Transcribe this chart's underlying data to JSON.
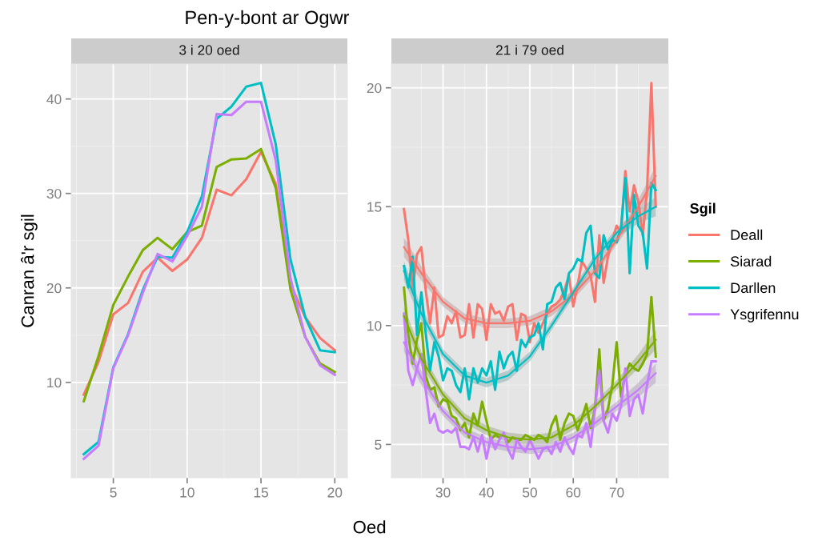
{
  "chart_data": [
    {
      "type": "line",
      "title": "Pen-y-bont ar Ogwr",
      "subtitle": "3 i 20 oed",
      "xlabel": "Oed",
      "ylabel": "Canran â'r sgil",
      "grid": true,
      "xlim": [
        2.15,
        20.85
      ],
      "xticks": [
        5,
        10,
        15,
        20
      ],
      "ylim": [
        -0.1,
        43.7
      ],
      "yticks": [
        10,
        20,
        30,
        40
      ],
      "x": [
        3,
        4,
        5,
        6,
        7,
        8,
        9,
        10,
        11,
        12,
        13,
        14,
        15,
        16,
        17,
        18,
        19,
        20
      ],
      "series": [
        {
          "color": "#f8766d",
          "values": [
            8.7,
            12.2,
            17.2,
            18.4,
            21.7,
            23.2,
            21.8,
            23.0,
            25.3,
            30.4,
            29.8,
            31.5,
            34.4,
            31.0,
            20.4,
            16.9,
            14.7,
            13.4
          ]
        },
        {
          "color": "#7cae00",
          "values": [
            8.0,
            12.8,
            18.2,
            21.2,
            24.0,
            25.3,
            24.1,
            25.9,
            26.6,
            32.8,
            33.6,
            33.7,
            34.7,
            30.6,
            19.8,
            14.8,
            12.0,
            11.1
          ]
        },
        {
          "color": "#00bfc4",
          "values": [
            2.4,
            3.7,
            11.6,
            15.1,
            19.8,
            23.3,
            23.2,
            25.9,
            29.7,
            37.9,
            39.2,
            41.3,
            41.7,
            35.2,
            23.0,
            16.9,
            13.4,
            13.2
          ]
        },
        {
          "color": "#c77cff",
          "values": [
            1.9,
            3.3,
            11.5,
            15.0,
            19.5,
            23.6,
            22.8,
            25.5,
            28.6,
            38.4,
            38.3,
            39.7,
            39.7,
            33.5,
            21.0,
            14.8,
            11.8,
            10.8
          ]
        }
      ]
    },
    {
      "type": "line",
      "subtitle": "21 i 79 oed",
      "legend_title": "Sgil",
      "legend": "right",
      "grid": true,
      "xlim": [
        18.1,
        81.9
      ],
      "xticks": [
        30,
        40,
        50,
        60,
        70
      ],
      "ylim": [
        3.6,
        21.0
      ],
      "yticks": [
        5,
        10,
        15,
        20
      ],
      "x": [
        21,
        22,
        23,
        24,
        25,
        26,
        27,
        28,
        29,
        30,
        31,
        32,
        33,
        34,
        35,
        36,
        37,
        38,
        39,
        40,
        41,
        42,
        43,
        44,
        45,
        46,
        47,
        48,
        49,
        50,
        51,
        52,
        53,
        54,
        55,
        56,
        57,
        58,
        59,
        60,
        61,
        62,
        63,
        64,
        65,
        66,
        67,
        68,
        69,
        70,
        71,
        72,
        73,
        74,
        75,
        76,
        77,
        78,
        79
      ],
      "series": [
        {
          "name": "Deall",
          "color": "#f8766d",
          "values": [
            14.9,
            13.6,
            11.5,
            13.0,
            13.3,
            11.5,
            10.1,
            11.6,
            9.5,
            9.6,
            10.4,
            10.1,
            10.6,
            9.5,
            9.6,
            10.9,
            9.5,
            10.9,
            10.7,
            9.4,
            10.9,
            10.5,
            10.6,
            10.2,
            10.8,
            10.9,
            9.4,
            10.5,
            10.4,
            9.3,
            10.1,
            9.7,
            10.1,
            10.5,
            10.8,
            10.9,
            11.1,
            11.5,
            12.1,
            10.8,
            11.7,
            12.7,
            12.4,
            12.1,
            11.0,
            13.8,
            11.8,
            12.9,
            13.6,
            14.2,
            13.9,
            16.5,
            14.8,
            15.9,
            15.2,
            13.8,
            15.7,
            20.2,
            15.0
          ]
        },
        {
          "name": "Siarad",
          "color": "#7cae00",
          "values": [
            11.6,
            9.6,
            8.4,
            9.4,
            10.1,
            7.9,
            7.3,
            7.4,
            6.6,
            6.9,
            6.8,
            6.2,
            6.1,
            5.6,
            5.9,
            5.3,
            6.3,
            5.8,
            6.8,
            6.0,
            5.2,
            5.4,
            5.3,
            5.4,
            5.1,
            5.3,
            5.2,
            5.2,
            5.4,
            5.3,
            5.2,
            5.4,
            5.3,
            5.1,
            5.8,
            6.2,
            5.2,
            5.9,
            6.3,
            6.2,
            5.6,
            6.1,
            6.7,
            5.7,
            6.5,
            9.0,
            6.0,
            6.5,
            7.5,
            9.3,
            7.0,
            8.0,
            8.4,
            8.2,
            8.1,
            8.4,
            8.8,
            11.2,
            8.7
          ]
        },
        {
          "name": "Darllen",
          "color": "#00bfc4",
          "values": [
            12.5,
            11.6,
            12.9,
            9.6,
            11.4,
            9.7,
            8.1,
            9.3,
            8.7,
            7.7,
            8.2,
            8.1,
            7.5,
            7.2,
            8.2,
            6.9,
            8.2,
            7.6,
            8.2,
            7.9,
            8.5,
            7.3,
            8.9,
            8.2,
            8.7,
            8.9,
            8.1,
            9.4,
            9.1,
            9.5,
            9.6,
            10.1,
            9.0,
            10.9,
            11.0,
            11.6,
            11.8,
            11.1,
            12.2,
            12.4,
            12.8,
            12.7,
            13.9,
            14.2,
            12.2,
            12.0,
            13.8,
            13.2,
            13.6,
            13.5,
            14.1,
            16.2,
            12.2,
            15.5,
            14.2,
            13.9,
            12.4,
            16.0,
            15.7
          ]
        },
        {
          "name": "Ysgrifennu",
          "color": "#c77cff",
          "values": [
            10.5,
            8.1,
            7.5,
            8.2,
            8.8,
            7.3,
            5.9,
            6.3,
            5.6,
            5.5,
            5.6,
            5.5,
            5.7,
            4.9,
            4.9,
            4.8,
            5.3,
            4.7,
            5.4,
            4.4,
            5.3,
            4.8,
            5.2,
            5.5,
            4.8,
            4.4,
            5.2,
            4.9,
            4.7,
            5.2,
            4.8,
            4.4,
            4.8,
            4.9,
            4.6,
            5.1,
            4.7,
            5.3,
            4.9,
            4.6,
            5.4,
            5.3,
            5.9,
            4.9,
            6.5,
            8.1,
            6.0,
            5.5,
            6.3,
            6.0,
            6.6,
            8.2,
            6.2,
            6.9,
            7.1,
            6.3,
            7.5,
            8.5,
            8.5
          ]
        },
        {
          "type": "line",
          "color": "#f8766d",
          "x": [
            21,
            25,
            30,
            35,
            40,
            45,
            50,
            55,
            60,
            65,
            70,
            75,
            79
          ],
          "values": [
            13.3,
            12.2,
            11.0,
            10.3,
            10.1,
            10.1,
            10.2,
            10.6,
            11.3,
            12.3,
            13.6,
            15.0,
            16.3
          ],
          "lower": [
            12.9,
            11.9,
            10.8,
            10.1,
            9.9,
            9.9,
            10.0,
            10.4,
            11.1,
            12.1,
            13.4,
            14.7,
            15.9
          ],
          "upper": [
            13.7,
            12.5,
            11.2,
            10.5,
            10.3,
            10.3,
            10.4,
            10.8,
            11.5,
            12.5,
            13.8,
            15.3,
            16.7
          ]
        },
        {
          "type": "line",
          "color": "#7cae00",
          "x": [
            21,
            25,
            30,
            35,
            40,
            45,
            50,
            55,
            60,
            65,
            70,
            75,
            79
          ],
          "values": [
            10.4,
            8.6,
            7.1,
            6.1,
            5.6,
            5.3,
            5.2,
            5.3,
            5.8,
            6.6,
            7.5,
            8.5,
            9.4
          ],
          "lower": [
            10.0,
            8.3,
            6.9,
            5.9,
            5.4,
            5.1,
            5.0,
            5.1,
            5.6,
            6.4,
            7.3,
            8.2,
            9.0
          ],
          "upper": [
            10.8,
            8.9,
            7.3,
            6.3,
            5.8,
            5.5,
            5.4,
            5.5,
            6.0,
            6.8,
            7.7,
            8.8,
            9.8
          ]
        },
        {
          "type": "line",
          "color": "#00bfc4",
          "x": [
            21,
            25,
            30,
            35,
            40,
            45,
            50,
            55,
            60,
            65,
            70,
            75,
            79
          ],
          "values": [
            12.3,
            10.5,
            8.8,
            7.9,
            7.6,
            7.9,
            8.7,
            10.0,
            11.4,
            12.8,
            13.9,
            14.6,
            15.0
          ],
          "lower": [
            11.9,
            10.2,
            8.6,
            7.7,
            7.4,
            7.7,
            8.5,
            9.8,
            11.2,
            12.6,
            13.7,
            14.3,
            14.6
          ],
          "upper": [
            12.7,
            10.8,
            9.0,
            8.1,
            7.8,
            8.1,
            8.9,
            10.2,
            11.6,
            13.0,
            14.1,
            14.9,
            15.4
          ]
        },
        {
          "type": "line",
          "color": "#c77cff",
          "x": [
            21,
            25,
            30,
            35,
            40,
            45,
            50,
            55,
            60,
            65,
            70,
            75,
            79
          ],
          "values": [
            9.3,
            7.8,
            6.4,
            5.5,
            5.1,
            4.9,
            4.8,
            4.9,
            5.3,
            5.9,
            6.6,
            7.3,
            8.0
          ],
          "lower": [
            8.9,
            7.5,
            6.2,
            5.3,
            4.9,
            4.7,
            4.6,
            4.7,
            5.1,
            5.7,
            6.4,
            7.0,
            7.6
          ],
          "upper": [
            9.7,
            8.1,
            6.6,
            5.7,
            5.3,
            5.1,
            5.0,
            5.1,
            5.5,
            6.1,
            6.8,
            7.6,
            8.4
          ]
        }
      ]
    }
  ]
}
